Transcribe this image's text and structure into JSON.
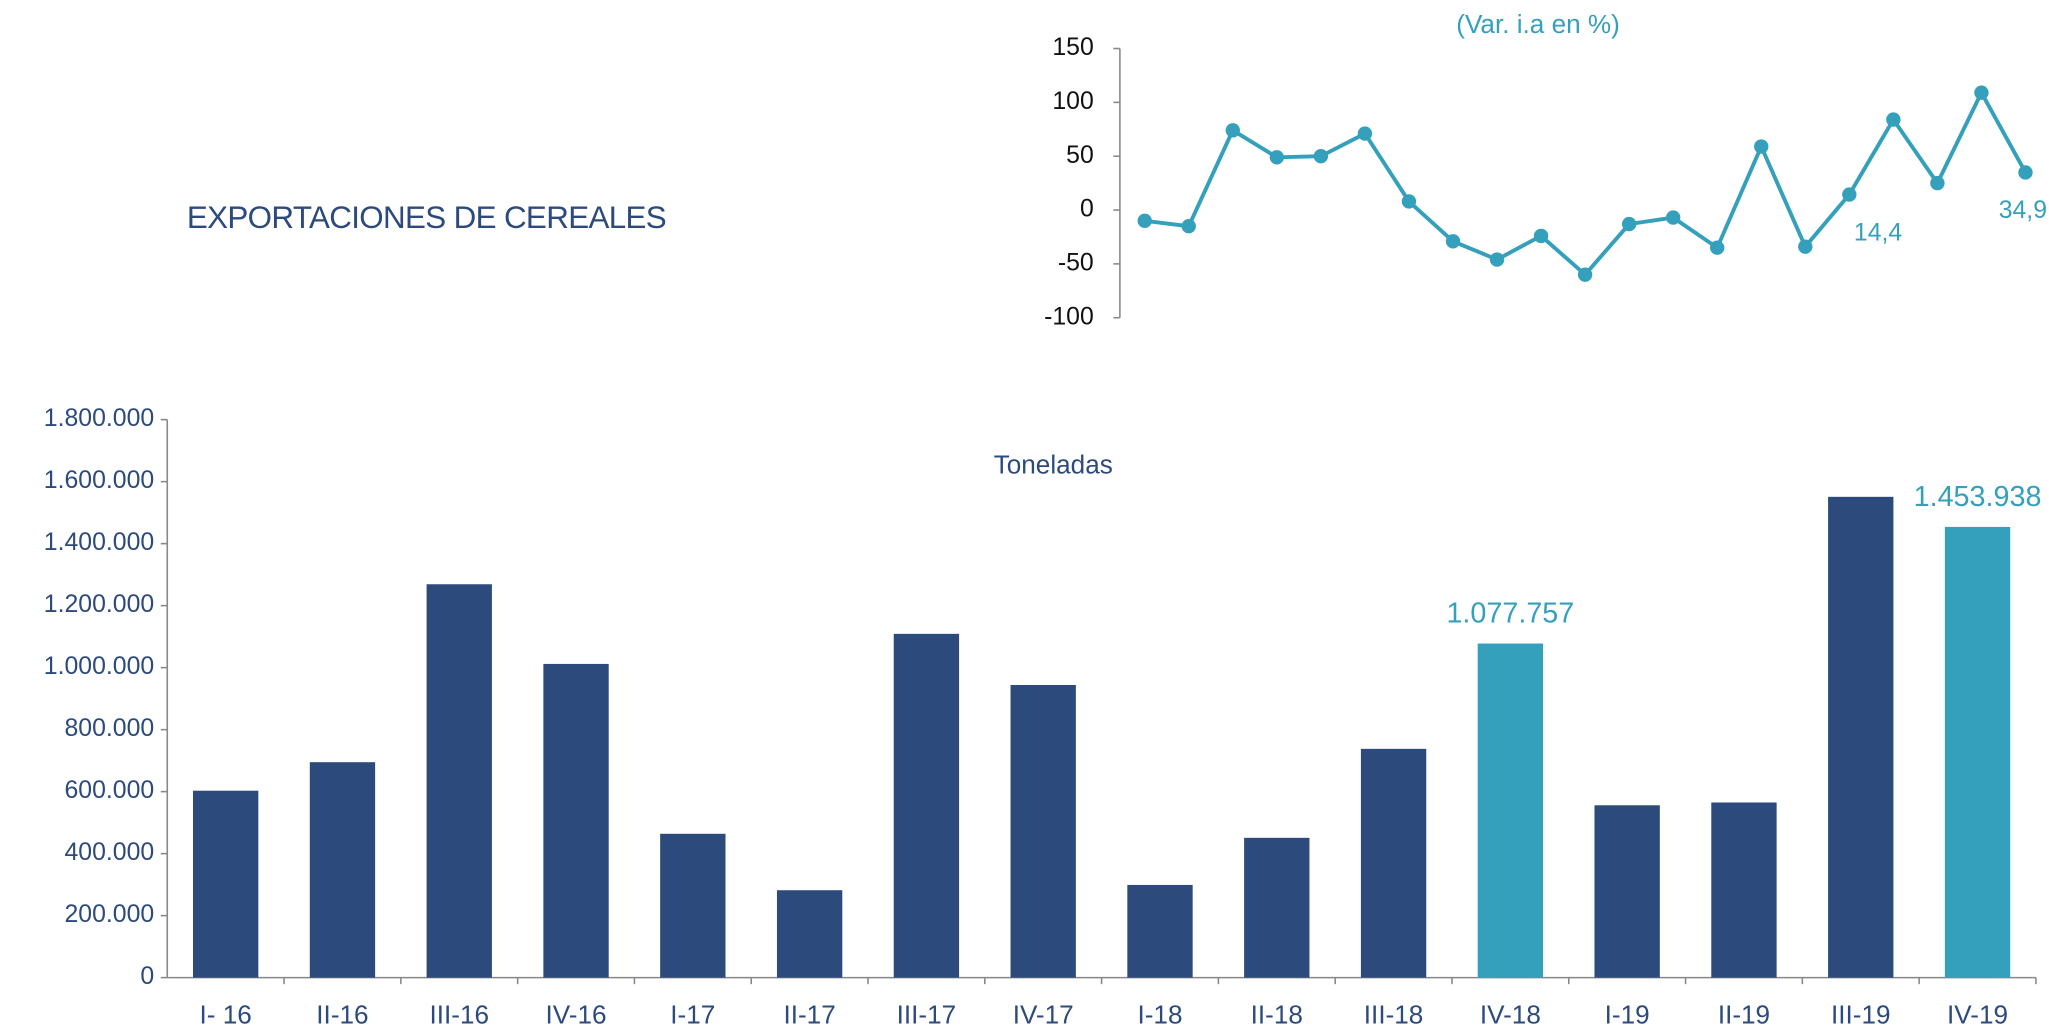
{
  "title": "EXPORTACIONES DE CEREALES",
  "chart_data": [
    {
      "type": "bar",
      "subtitle": "Toneladas",
      "categories": [
        "I- 16",
        "II-16",
        "III-16",
        "IV-16",
        "I-17",
        "II-17",
        "III-17",
        "IV-17",
        "I-18",
        "II-18",
        "III-18",
        "IV-18",
        "I-19",
        "II-19",
        "III-19",
        "IV-19"
      ],
      "values": [
        603000,
        695000,
        1269000,
        1012000,
        464000,
        282000,
        1109000,
        944000,
        299000,
        451000,
        738000,
        1077757,
        556000,
        565000,
        1551000,
        1453938
      ],
      "value_labels": [
        null,
        null,
        null,
        null,
        null,
        null,
        null,
        null,
        null,
        null,
        null,
        "1.077.757",
        null,
        null,
        null,
        "1.453.938"
      ],
      "colors": [
        "#2c4a7c",
        "#2c4a7c",
        "#2c4a7c",
        "#2c4a7c",
        "#2c4a7c",
        "#2c4a7c",
        "#2c4a7c",
        "#2c4a7c",
        "#2c4a7c",
        "#2c4a7c",
        "#2c4a7c",
        "#35a0bb",
        "#2c4a7c",
        "#2c4a7c",
        "#2c4a7c",
        "#35a0bb"
      ],
      "ylim": [
        0,
        1800000
      ],
      "yticks": [
        0,
        {
          "value": 200000,
          "label": "200.000"
        },
        {
          "value": 400000,
          "label": "400.000"
        },
        {
          "value": 600000,
          "label": "600.000"
        },
        {
          "value": 800000,
          "label": "800.000"
        },
        {
          "value": 1000000,
          "label": "1.000.000"
        },
        {
          "value": 1200000,
          "label": "1.200.000"
        },
        {
          "value": 1400000,
          "label": "1.400.000"
        },
        {
          "value": 1600000,
          "label": "1.600.000"
        },
        {
          "value": 1800000,
          "label": "1.800.000"
        }
      ]
    },
    {
      "type": "line",
      "subtitle": "(Var. i.a en %)",
      "color": "#35a0bb",
      "values": [
        -10,
        -15,
        74,
        49,
        50,
        71,
        8,
        -29,
        -46,
        -24,
        -60,
        -13,
        -7,
        -35,
        59,
        -34,
        14.4,
        84,
        25,
        109,
        34.9
      ],
      "value_labels": [
        null,
        null,
        null,
        null,
        null,
        null,
        null,
        null,
        null,
        null,
        null,
        null,
        null,
        null,
        null,
        null,
        "14,4",
        null,
        null,
        null,
        "34,9"
      ],
      "ylim": [
        -100,
        150
      ],
      "yticks": [
        -100,
        -50,
        0,
        50,
        100,
        150
      ]
    }
  ]
}
